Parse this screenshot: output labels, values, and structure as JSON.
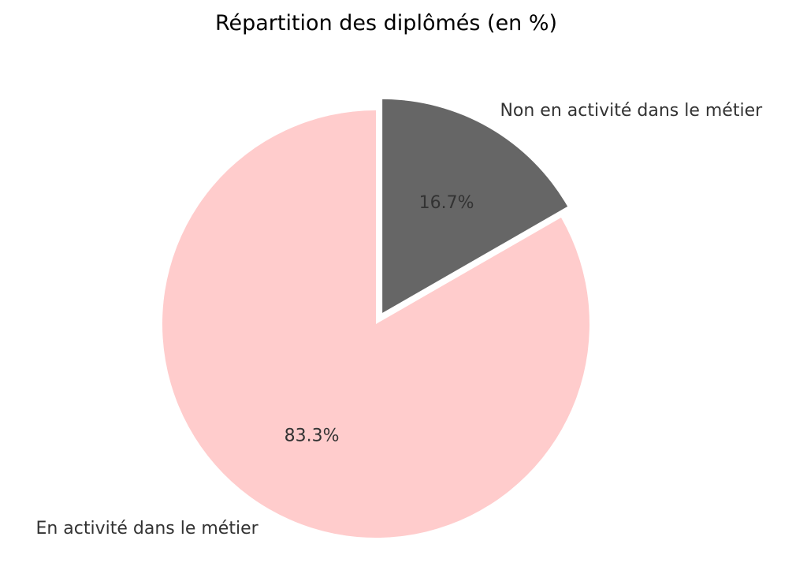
{
  "chart_data": {
    "type": "pie",
    "title": "Répartition des diplômés (en %)",
    "slices": [
      {
        "label": "Non en activité dans le métier",
        "value": 16.7,
        "pct_text": "16.7%",
        "color": "#666666",
        "exploded": true
      },
      {
        "label": "En activité dans le métier",
        "value": 83.3,
        "pct_text": "83.3%",
        "color": "#ffcccc",
        "exploded": false
      }
    ],
    "start_angle_deg": 90,
    "direction": "clockwise"
  }
}
